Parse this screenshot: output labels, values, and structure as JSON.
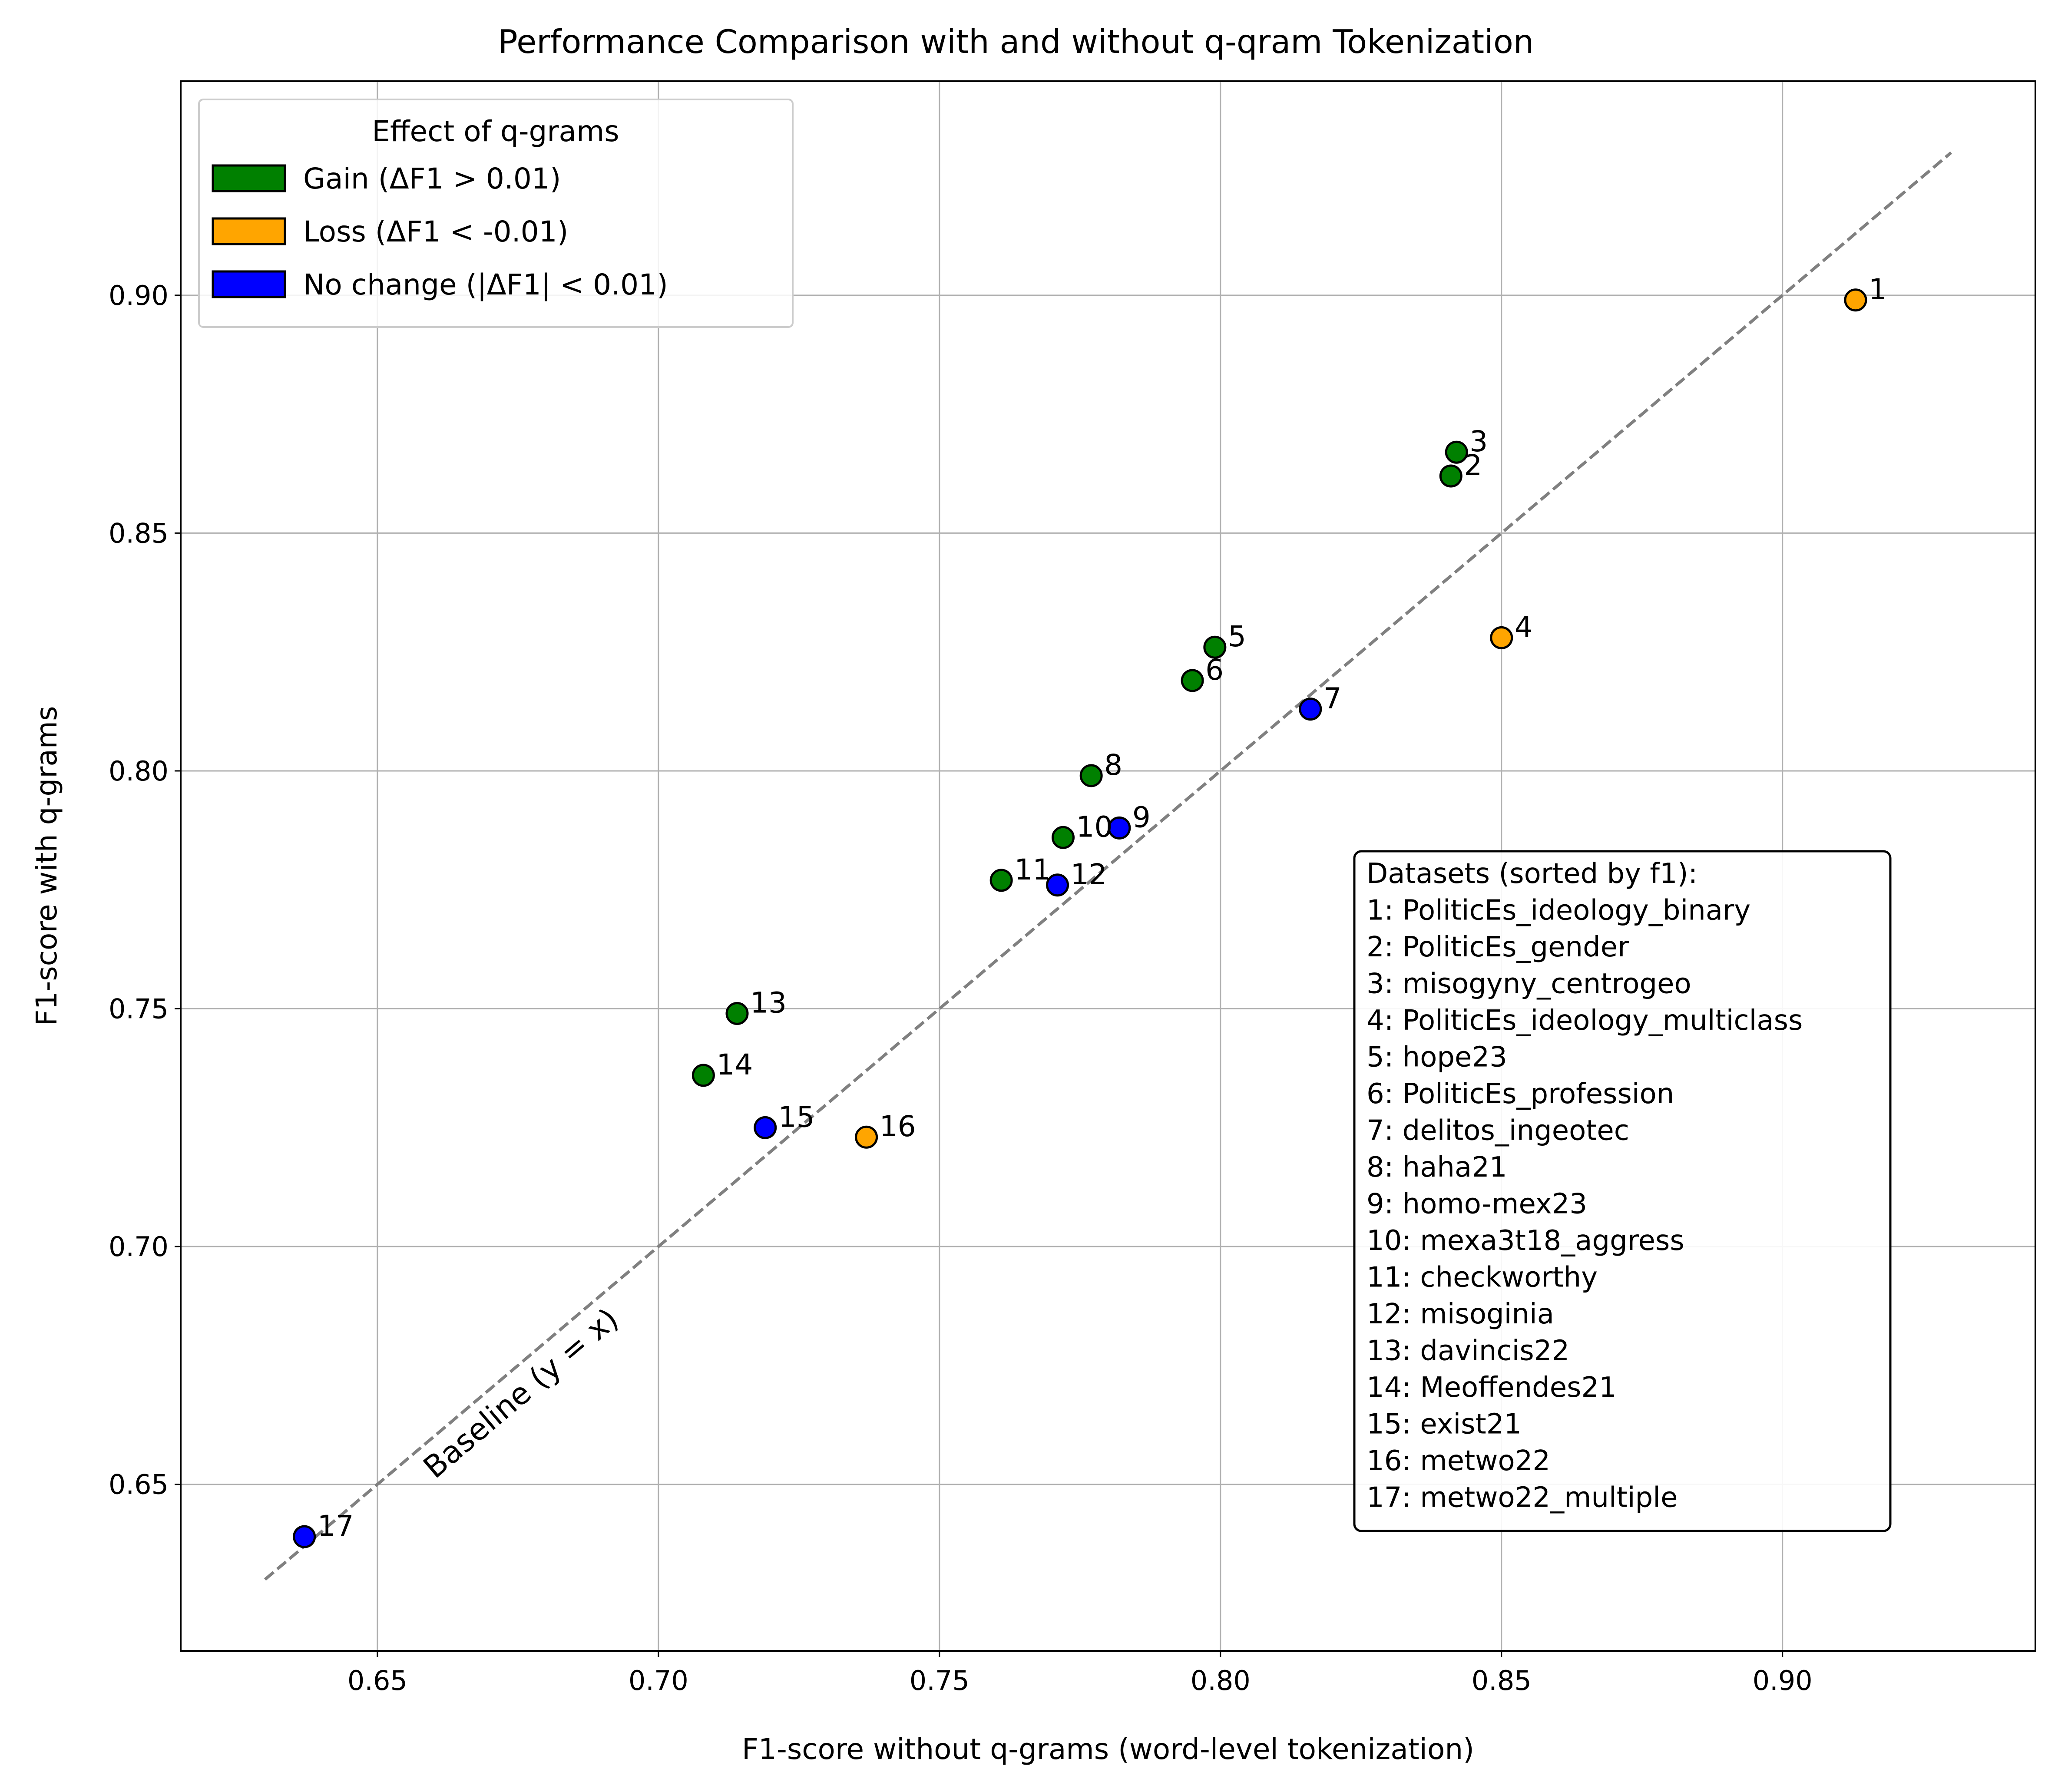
{
  "chart_data": {
    "type": "scatter",
    "title": "Performance Comparison with and without q-qram Tokenization",
    "xlabel": "F1-score without q-grams (word-level tokenization)",
    "ylabel": "F1-score with q-grams",
    "xlim": [
      0.615,
      0.945
    ],
    "ylim": [
      0.615,
      0.945
    ],
    "x_ticks": [
      "0.65",
      "0.70",
      "0.75",
      "0.80",
      "0.85",
      "0.90"
    ],
    "y_ticks": [
      "0.65",
      "0.70",
      "0.75",
      "0.80",
      "0.85",
      "0.90"
    ],
    "grid": true,
    "baseline": {
      "label": "Baseline (y = x)",
      "from": 0.63,
      "to": 0.93,
      "color": "#808080"
    },
    "legend": {
      "title": "Effect of q-grams",
      "position": "upper-left",
      "items": [
        {
          "key": "gain",
          "label": "Gain (ΔF1 > 0.01)",
          "color": "#008000"
        },
        {
          "key": "loss",
          "label": "Loss (ΔF1 < -0.01)",
          "color": "#FFA500"
        },
        {
          "key": "nochange",
          "label": "No change (|ΔF1| < 0.01)",
          "color": "#0000FF"
        }
      ]
    },
    "points": [
      {
        "id": "1",
        "x": 0.913,
        "y": 0.899,
        "category": "loss"
      },
      {
        "id": "2",
        "x": 0.841,
        "y": 0.862,
        "category": "gain"
      },
      {
        "id": "3",
        "x": 0.842,
        "y": 0.867,
        "category": "gain"
      },
      {
        "id": "4",
        "x": 0.85,
        "y": 0.828,
        "category": "loss"
      },
      {
        "id": "5",
        "x": 0.799,
        "y": 0.826,
        "category": "gain"
      },
      {
        "id": "6",
        "x": 0.795,
        "y": 0.819,
        "category": "gain"
      },
      {
        "id": "7",
        "x": 0.816,
        "y": 0.813,
        "category": "nochange"
      },
      {
        "id": "8",
        "x": 0.777,
        "y": 0.799,
        "category": "gain"
      },
      {
        "id": "9",
        "x": 0.782,
        "y": 0.788,
        "category": "nochange"
      },
      {
        "id": "10",
        "x": 0.772,
        "y": 0.786,
        "category": "gain"
      },
      {
        "id": "11",
        "x": 0.761,
        "y": 0.777,
        "category": "gain"
      },
      {
        "id": "12",
        "x": 0.771,
        "y": 0.776,
        "category": "nochange"
      },
      {
        "id": "13",
        "x": 0.714,
        "y": 0.749,
        "category": "gain"
      },
      {
        "id": "14",
        "x": 0.708,
        "y": 0.736,
        "category": "gain"
      },
      {
        "id": "15",
        "x": 0.719,
        "y": 0.725,
        "category": "nochange"
      },
      {
        "id": "16",
        "x": 0.737,
        "y": 0.723,
        "category": "loss"
      },
      {
        "id": "17",
        "x": 0.637,
        "y": 0.639,
        "category": "nochange"
      }
    ],
    "datasets_box": {
      "title": "Datasets (sorted by f1):",
      "position": "lower-right",
      "lines": [
        "1: PoliticEs_ideology_binary",
        "2: PoliticEs_gender",
        "3: misogyny_centrogeo",
        "4: PoliticEs_ideology_multiclass",
        "5: hope23",
        "6: PoliticEs_profession",
        "7: delitos_ingeotec",
        "8: haha21",
        "9: homo-mex23",
        "10: mexa3t18_aggress",
        "11: checkworthy",
        "12: misoginia",
        "13: davincis22",
        "14: Meoffendes21",
        "15: exist21",
        "16: metwo22",
        "17: metwo22_multiple"
      ]
    }
  }
}
